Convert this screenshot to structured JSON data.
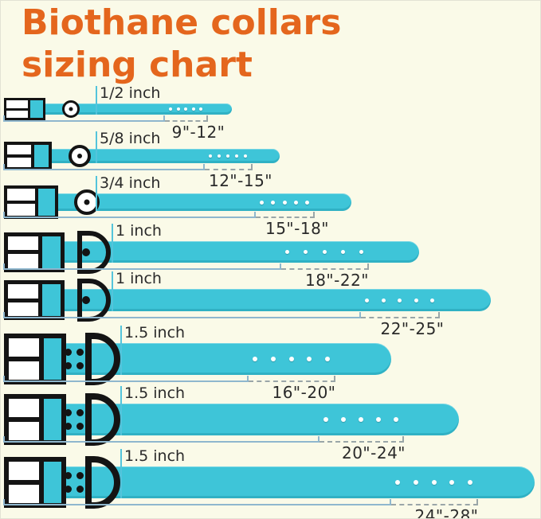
{
  "title": {
    "line1": "Biothane collars",
    "line2": "sizing chart"
  },
  "colors": {
    "background": "#FAFAE8",
    "title": "#E4661D",
    "strap": "#3EC5D8",
    "buckle": "#141414",
    "measure": "#8FB7CE",
    "dash": "#9AA6A8",
    "tick": "#54C4DB",
    "text": "#2A2A2A",
    "hole": "#FFFFFF"
  },
  "holes_per_collar": 5,
  "collars": [
    {
      "width_label": "1/2 inch",
      "range_label": "9\"-12\"",
      "buckle": "small-ring"
    },
    {
      "width_label": "5/8 inch",
      "range_label": "12\"-15\"",
      "buckle": "small-ring"
    },
    {
      "width_label": "3/4 inch",
      "range_label": "15\"-18\"",
      "buckle": "small-ring"
    },
    {
      "width_label": "1 inch",
      "range_label": "18\"-22\"",
      "buckle": "d-ring"
    },
    {
      "width_label": "1 inch",
      "range_label": "22\"-25\"",
      "buckle": "d-ring"
    },
    {
      "width_label": "1.5 inch",
      "range_label": "16\"-20\"",
      "buckle": "d-ring-riveted"
    },
    {
      "width_label": "1.5 inch",
      "range_label": "20\"-24\"",
      "buckle": "d-ring-riveted"
    },
    {
      "width_label": "1.5 inch",
      "range_label": "24\"-28\"",
      "buckle": "d-ring-riveted"
    }
  ],
  "chart_data": {
    "type": "table",
    "title": "Biothane collars sizing chart",
    "columns": [
      "collar_width",
      "neck_size_range"
    ],
    "rows": [
      [
        "1/2 inch",
        "9\"-12\""
      ],
      [
        "5/8 inch",
        "12\"-15\""
      ],
      [
        "3/4 inch",
        "15\"-18\""
      ],
      [
        "1 inch",
        "18\"-22\""
      ],
      [
        "1 inch",
        "22\"-25\""
      ],
      [
        "1.5 inch",
        "16\"-20\""
      ],
      [
        "1.5 inch",
        "20\"-24\""
      ],
      [
        "1.5 inch",
        "24\"-28\""
      ]
    ]
  }
}
